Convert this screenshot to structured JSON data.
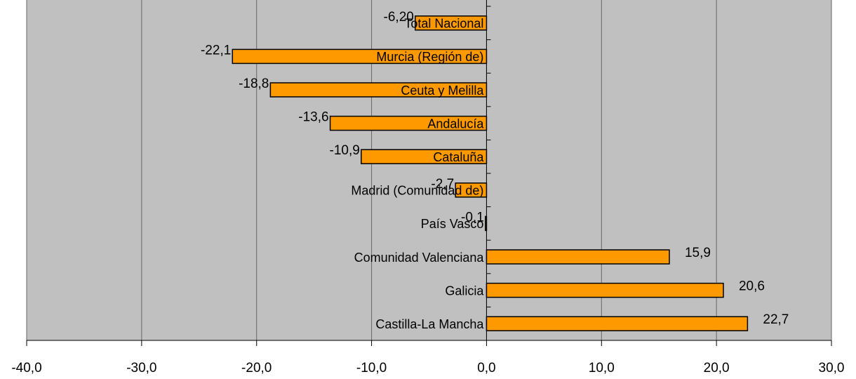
{
  "chart_data": {
    "type": "barh",
    "categories": [
      "Total Nacional",
      "Murcia (Región de)",
      "Ceuta y Melilla",
      "Andalucía",
      "Cataluña",
      "Madrid (Comunidad de)",
      "País Vasco",
      "Comunidad Valenciana",
      "Galicia",
      "Castilla-La Mancha"
    ],
    "values": [
      -6.2,
      -22.1,
      -18.8,
      -13.6,
      -10.9,
      -2.7,
      -0.1,
      15.9,
      20.6,
      22.7
    ],
    "value_labels": [
      "-6,20",
      "-22,1",
      "-18,8",
      "-13,6",
      "-10,9",
      "-2,7",
      "-0,1",
      "15,9",
      "20,6",
      "22,7"
    ],
    "color": "#ff9900",
    "xlim": [
      -40,
      30
    ],
    "xticks": [
      {
        "value": -40,
        "label": "-40,0"
      },
      {
        "value": -30,
        "label": "-30,0"
      },
      {
        "value": -20,
        "label": "-20,0"
      },
      {
        "value": -10,
        "label": "-10,0"
      },
      {
        "value": 0,
        "label": "0,0"
      },
      {
        "value": 10,
        "label": "10,0"
      },
      {
        "value": 20,
        "label": "20,0"
      },
      {
        "value": 30,
        "label": "30,0"
      }
    ],
    "grid": true
  }
}
